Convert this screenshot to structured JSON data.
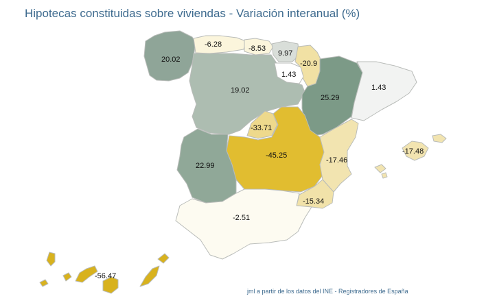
{
  "title": "Hipotecas constituidas sobre viviendas - Variación interanual (%)",
  "source": "jml a partir de los datos del INE - Registradores de España",
  "regions": [
    {
      "name": "Galicia",
      "value": "20.02",
      "color": "#8fa598"
    },
    {
      "name": "Asturias",
      "value": "-6.28",
      "color": "#fbf5dc"
    },
    {
      "name": "Cantabria",
      "value": "-8.53",
      "color": "#fbf5dc"
    },
    {
      "name": "País Vasco",
      "value": "9.97",
      "color": "#d9ded9"
    },
    {
      "name": "Navarra",
      "value": "-20.9",
      "color": "#f1e1a4"
    },
    {
      "name": "La Rioja",
      "value": "1.43",
      "color": "#ffffff"
    },
    {
      "name": "Aragón",
      "value": "25.29",
      "color": "#7c9a87"
    },
    {
      "name": "Cataluña",
      "value": "1.43",
      "color": "#f2f3f2"
    },
    {
      "name": "Castilla y León",
      "value": "19.02",
      "color": "#adbdb1"
    },
    {
      "name": "Madrid",
      "value": "-33.71",
      "color": "#eed98c"
    },
    {
      "name": "Castilla-La Mancha",
      "value": "-45.25",
      "color": "#e1bd30"
    },
    {
      "name": "Extremadura",
      "value": "22.99",
      "color": "#90a898"
    },
    {
      "name": "Comunidad Valenciana",
      "value": "-17.46",
      "color": "#f2e4b0"
    },
    {
      "name": "Murcia",
      "value": "-15.34",
      "color": "#f1e2a9"
    },
    {
      "name": "Andalucía",
      "value": "-2.51",
      "color": "#fdfbf1"
    },
    {
      "name": "Illes Balears",
      "value": "-17.48",
      "color": "#f2e4b0"
    },
    {
      "name": "Canarias",
      "value": "-56.47",
      "color": "#d8b21e"
    }
  ]
}
